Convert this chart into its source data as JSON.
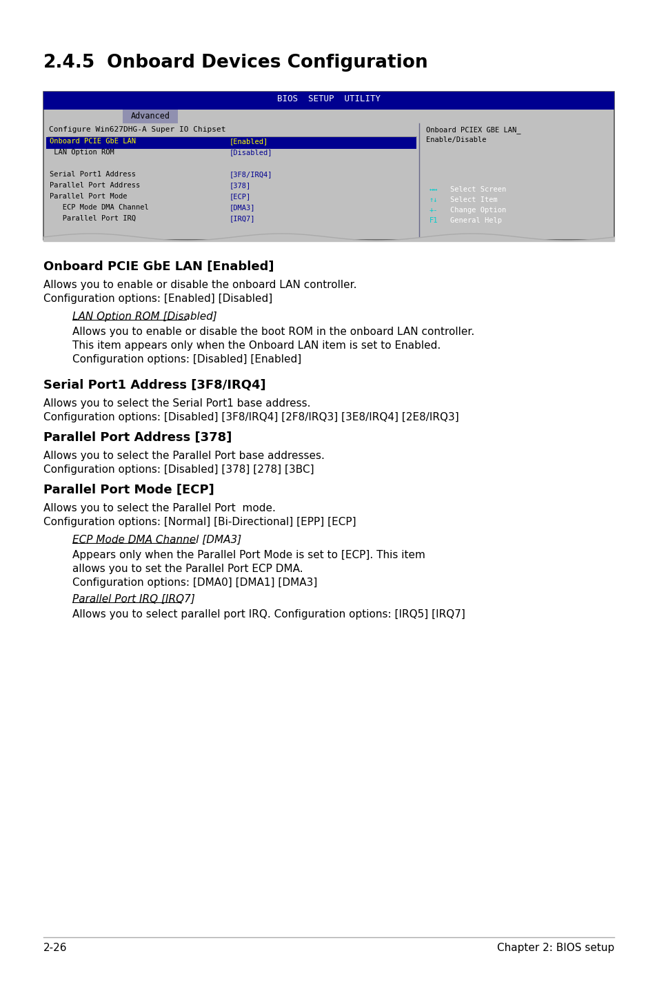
{
  "title_num": "2.4.5",
  "title_text": "Onboard Devices Configuration",
  "bios_title": "BIOS  SETUP  UTILITY",
  "bios_tab": "Advanced",
  "bios_subtitle": "Configure Win627DHG-A Super IO Chipset",
  "bios_left_items": [
    [
      "Onboard PCIE GbE LAN",
      "[Enabled]",
      true
    ],
    [
      " LAN Option ROM",
      "[Disabled]",
      false
    ],
    [
      "",
      "",
      false
    ],
    [
      "Serial Port1 Address",
      "[3F8/IRQ4]",
      false
    ],
    [
      "Parallel Port Address",
      "[378]",
      false
    ],
    [
      "Parallel Port Mode",
      "[ECP]",
      false
    ],
    [
      "   ECP Mode DMA Channel",
      "[DMA3]",
      false
    ],
    [
      "   Parallel Port IRQ",
      "[IRQ7]",
      false
    ]
  ],
  "bios_right_lines": [
    "Onboard PCIEX GBE LAN_",
    "Enable/Disable"
  ],
  "bios_nav": [
    [
      "↔↔",
      "Select Screen"
    ],
    [
      "↑↓",
      "Select Item"
    ],
    [
      "+-",
      "Change Option"
    ],
    [
      "F1",
      "General Help"
    ]
  ],
  "section_heading1": "Onboard PCIE GbE LAN [Enabled]",
  "section_text1a": "Allows you to enable or disable the onboard LAN controller.",
  "section_text1b": "Configuration options: [Enabled] [Disabled]",
  "subsection_heading1": "LAN Option ROM [Disabled]",
  "subsection_text1": [
    "Allows you to enable or disable the boot ROM in the onboard LAN controller.",
    "This item appears only when the Onboard LAN item is set to Enabled.",
    "Configuration options: [Disabled] [Enabled]"
  ],
  "section_heading2": "Serial Port1 Address [3F8/IRQ4]",
  "section_text2a": "Allows you to select the Serial Port1 base address.",
  "section_text2b": "Configuration options: [Disabled] [3F8/IRQ4] [2F8/IRQ3] [3E8/IRQ4] [2E8/IRQ3]",
  "section_heading3": "Parallel Port Address [378]",
  "section_text3a": "Allows you to select the Parallel Port base addresses.",
  "section_text3b": "Configuration options: [Disabled] [378] [278] [3BC]",
  "section_heading4": "Parallel Port Mode [ECP]",
  "section_text4a": "Allows you to select the Parallel Port  mode.",
  "section_text4b": "Configuration options: [Normal] [Bi-Directional] [EPP] [ECP]",
  "subsection_heading2": "ECP Mode DMA Channel [DMA3]",
  "subsection_text2": [
    "Appears only when the Parallel Port Mode is set to [ECP]. This item",
    "allows you to set the Parallel Port ECP DMA.",
    "Configuration options: [DMA0] [DMA1] [DMA3]"
  ],
  "subsection_heading3": "Parallel Port IRQ [IRQ7]",
  "subsection_text3": "Allows you to select parallel port IRQ. Configuration options: [IRQ5] [IRQ7]",
  "footer_left": "2-26",
  "footer_right": "Chapter 2: BIOS setup",
  "bg_color": "#ffffff",
  "bios_bg": "#b0b0b0",
  "bios_header_bg": "#000090",
  "bios_tab_bg": "#9090b0",
  "bios_content_bg": "#c0c0c0",
  "bios_highlight_bg": "#000090",
  "bios_highlight_fg": "#ffff00",
  "bios_normal_fg": "#000000",
  "bios_value_fg": "#000090",
  "nav_sym_color": "#00cccc",
  "nav_txt_color": "#ffffff",
  "divider_color": "#888888"
}
